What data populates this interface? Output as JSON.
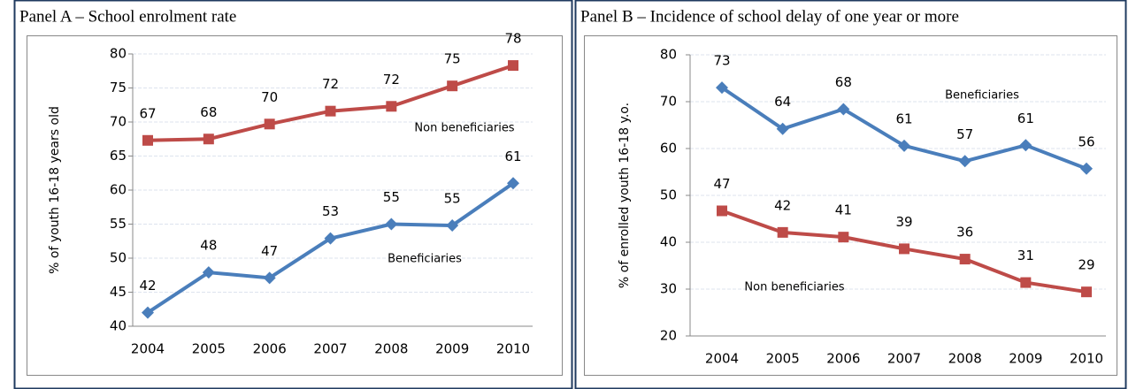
{
  "chart_data": [
    {
      "type": "line",
      "title": "Panel A – School enrolment rate",
      "y_label": "% of youth 16-18 years old",
      "categories": [
        "2004",
        "2005",
        "2006",
        "2007",
        "2008",
        "2009",
        "2010"
      ],
      "series": [
        {
          "name": "Beneficiaries",
          "color": "#4a7ebb",
          "marker": "diamond",
          "values": [
            42,
            47.9,
            47.1,
            52.9,
            55,
            54.8,
            61
          ],
          "value_labels": [
            "42",
            "48",
            "47",
            "53",
            "55",
            "55",
            "61"
          ]
        },
        {
          "name": "Non beneficiaries",
          "color": "#be4b48",
          "marker": "square",
          "values": [
            67.3,
            67.5,
            69.7,
            71.6,
            72.3,
            75.3,
            78.3
          ],
          "value_labels": [
            "67",
            "68",
            "70",
            "72",
            "72",
            "75",
            "78"
          ]
        }
      ],
      "ylim": [
        40,
        80
      ],
      "yticks": [
        40,
        45,
        50,
        55,
        60,
        65,
        70,
        75,
        80
      ],
      "grid": true
    },
    {
      "type": "line",
      "title": "Panel B – Incidence of school delay of one year or more",
      "y_label": "% of enrolled youth 16-18 y.o.",
      "categories": [
        "2004",
        "2005",
        "2006",
        "2007",
        "2008",
        "2009",
        "2010"
      ],
      "series": [
        {
          "name": "Beneficiaries",
          "color": "#4a7ebb",
          "marker": "diamond",
          "values": [
            73,
            64.2,
            68.4,
            60.6,
            57.3,
            60.7,
            55.7
          ],
          "value_labels": [
            "73",
            "64",
            "68",
            "61",
            "57",
            "61",
            "56"
          ]
        },
        {
          "name": "Non beneficiaries",
          "color": "#be4b48",
          "marker": "square",
          "values": [
            46.7,
            42.1,
            41.1,
            38.6,
            36.4,
            31.4,
            29.4
          ],
          "value_labels": [
            "47",
            "42",
            "41",
            "39",
            "36",
            "31",
            "29"
          ]
        }
      ],
      "ylim": [
        20,
        80
      ],
      "yticks": [
        20,
        30,
        40,
        50,
        60,
        70,
        80
      ],
      "grid": true
    }
  ]
}
